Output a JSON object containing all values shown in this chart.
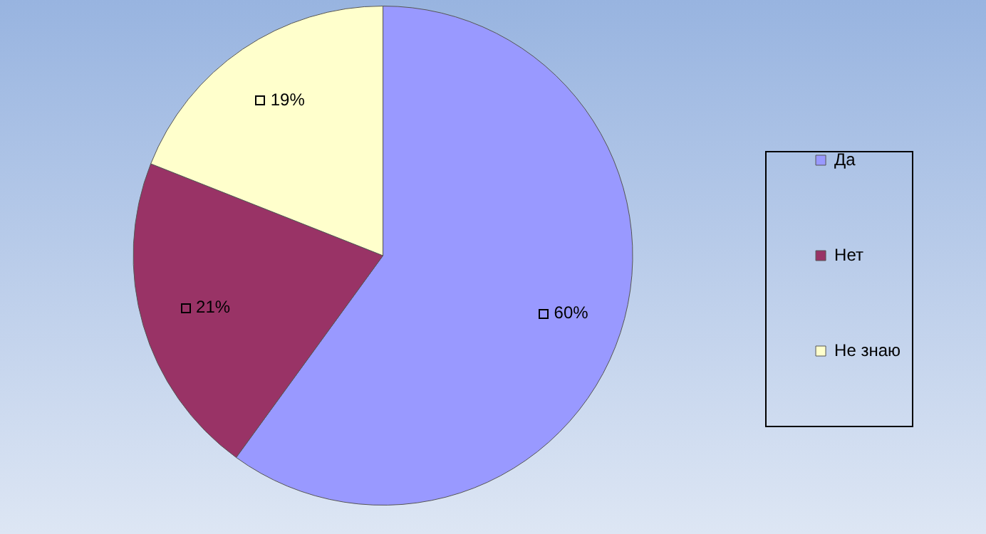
{
  "chart_data": {
    "type": "pie",
    "categories": [
      "Да",
      "Нет",
      "Не знаю"
    ],
    "values": [
      60,
      21,
      19
    ],
    "colors": [
      "#9999ff",
      "#993366",
      "#ffffcc"
    ],
    "value_labels": [
      "60%",
      "21%",
      "19%"
    ],
    "legend": "right"
  }
}
